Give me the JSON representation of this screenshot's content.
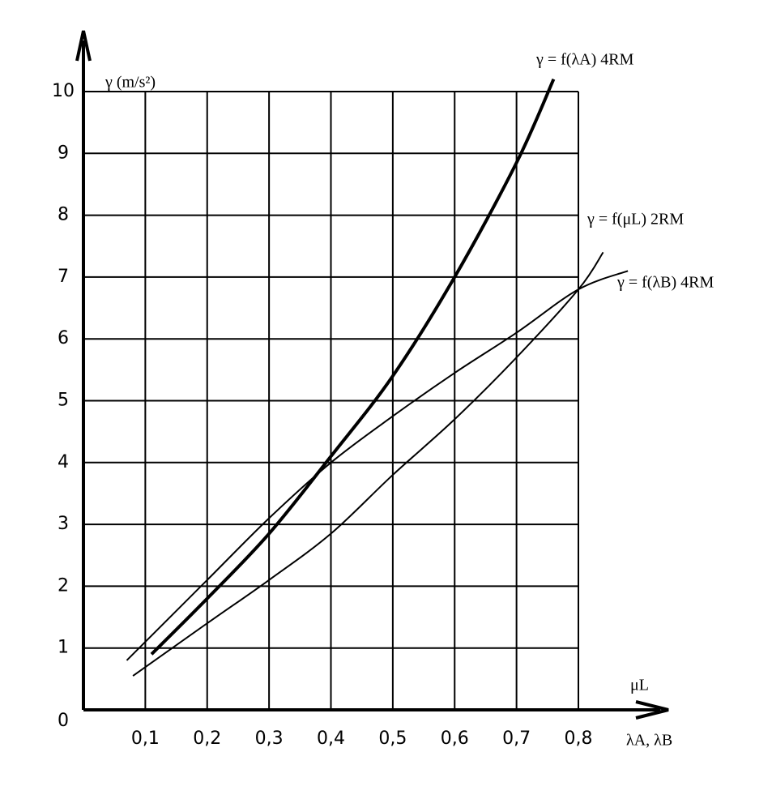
{
  "chart_data": {
    "type": "line",
    "y_label": "γ (m/s²)",
    "x_label_top": "μL",
    "x_label_bottom": "λA, λB",
    "xlim": [
      0,
      0.8
    ],
    "ylim": [
      0,
      10
    ],
    "xticks": [
      {
        "value": 0.1,
        "label": "0,1"
      },
      {
        "value": 0.2,
        "label": "0,2"
      },
      {
        "value": 0.3,
        "label": "0,3"
      },
      {
        "value": 0.4,
        "label": "0,4"
      },
      {
        "value": 0.5,
        "label": "0,5"
      },
      {
        "value": 0.6,
        "label": "0,6"
      },
      {
        "value": 0.7,
        "label": "0,7"
      },
      {
        "value": 0.8,
        "label": "0,8"
      }
    ],
    "yticks": [
      0,
      1,
      2,
      3,
      4,
      5,
      6,
      7,
      8,
      9,
      10
    ],
    "grid": true,
    "series": [
      {
        "name": "γ = f(λA)  4RM",
        "color": "#000000",
        "width": 4,
        "x": [
          0.11,
          0.2,
          0.3,
          0.4,
          0.5,
          0.6,
          0.7,
          0.76
        ],
        "values": [
          0.9,
          1.8,
          2.85,
          4.1,
          5.4,
          7.0,
          8.85,
          10.2
        ]
      },
      {
        "name": "γ = f(μL)  2RM",
        "color": "#000000",
        "width": 2,
        "x": [
          0.08,
          0.2,
          0.3,
          0.4,
          0.5,
          0.6,
          0.7,
          0.8,
          0.84
        ],
        "values": [
          0.55,
          1.4,
          2.1,
          2.85,
          3.8,
          4.7,
          5.7,
          6.8,
          7.4
        ]
      },
      {
        "name": "γ = f(λB)  4RM",
        "color": "#000000",
        "width": 2,
        "x": [
          0.07,
          0.2,
          0.3,
          0.4,
          0.5,
          0.6,
          0.7,
          0.8,
          0.88
        ],
        "values": [
          0.8,
          2.1,
          3.1,
          4.0,
          4.75,
          5.45,
          6.1,
          6.8,
          7.1
        ]
      }
    ]
  }
}
